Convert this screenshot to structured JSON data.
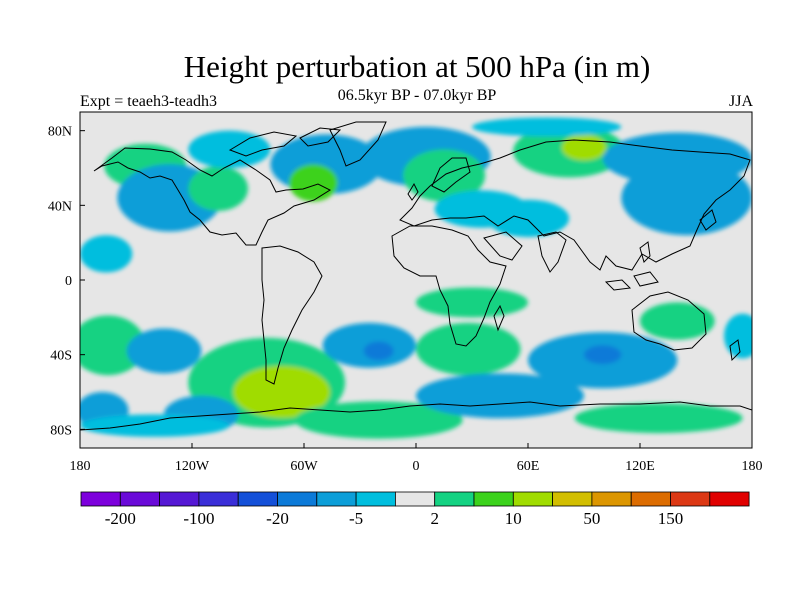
{
  "figure": {
    "title": "Height perturbation at 500 hPa (in m)",
    "subtitle": "06.5kyr BP - 07.0kyr BP",
    "left_label": "Expt = teaeh3-teadh3",
    "right_label": "JJA"
  },
  "chart_data": {
    "type": "heatmap",
    "title": "Height perturbation at 500 hPa (in m)",
    "subtitle": "06.5kyr BP - 07.0kyr BP",
    "xlim": [
      -180,
      180
    ],
    "ylim": [
      -90,
      90
    ],
    "x_ticks": [
      {
        "value": -180,
        "label": "180"
      },
      {
        "value": -120,
        "label": "120W"
      },
      {
        "value": -60,
        "label": "60W"
      },
      {
        "value": 0,
        "label": "0"
      },
      {
        "value": 60,
        "label": "60E"
      },
      {
        "value": 120,
        "label": "120E"
      },
      {
        "value": 180,
        "label": "180"
      }
    ],
    "y_ticks": [
      {
        "value": 80,
        "label": "80N"
      },
      {
        "value": 40,
        "label": "40N"
      },
      {
        "value": 0,
        "label": "0"
      },
      {
        "value": -40,
        "label": "40S"
      },
      {
        "value": -80,
        "label": "80S"
      }
    ],
    "colorbar": {
      "colors": [
        "#7d00dc",
        "#6a0ad8",
        "#5518d4",
        "#3a2ed8",
        "#1450d8",
        "#0c7ad8",
        "#0c9ed8",
        "#00bede",
        "#e6e6e6",
        "#14d282",
        "#3cd21c",
        "#a0dc00",
        "#d2be00",
        "#dc9600",
        "#dc6c00",
        "#dc3814",
        "#e00000"
      ],
      "tick_labels": [
        {
          "after_box": 1,
          "label": "-200"
        },
        {
          "after_box": 3,
          "label": "-100"
        },
        {
          "after_box": 5,
          "label": "-20"
        },
        {
          "after_box": 7,
          "label": "-5"
        },
        {
          "after_box": 9,
          "label": "2"
        },
        {
          "after_box": 11,
          "label": "10"
        },
        {
          "after_box": 13,
          "label": "50"
        },
        {
          "after_box": 15,
          "label": "150"
        }
      ]
    },
    "anomaly_blobs": [
      {
        "lon": -166,
        "lat": 14,
        "rlon": 14,
        "rlat": 10,
        "value": -3
      },
      {
        "lon": -145,
        "lat": 61,
        "rlon": 22,
        "rlat": 12,
        "value": 5
      },
      {
        "lon": -132,
        "lat": 44,
        "rlon": 28,
        "rlat": 18,
        "value": -5
      },
      {
        "lon": -106,
        "lat": 49,
        "rlon": 16,
        "rlat": 12,
        "value": 5
      },
      {
        "lon": -48,
        "lat": 62,
        "rlon": 30,
        "rlat": 16,
        "value": -5
      },
      {
        "lon": -55,
        "lat": 52,
        "rlon": 13,
        "rlat": 10,
        "value": 12
      },
      {
        "lon": -100,
        "lat": 70,
        "rlon": 22,
        "rlat": 10,
        "value": -4
      },
      {
        "lon": 5,
        "lat": 66,
        "rlon": 35,
        "rlat": 16,
        "value": -5
      },
      {
        "lon": 15,
        "lat": 56,
        "rlon": 22,
        "rlat": 14,
        "value": 5
      },
      {
        "lon": 35,
        "lat": 38,
        "rlon": 25,
        "rlat": 10,
        "value": -4
      },
      {
        "lon": 60,
        "lat": 33,
        "rlon": 22,
        "rlat": 10,
        "value": -4
      },
      {
        "lon": 82,
        "lat": 69,
        "rlon": 30,
        "rlat": 14,
        "value": 7
      },
      {
        "lon": 90,
        "lat": 71,
        "rlon": 12,
        "rlat": 7,
        "value": 25
      },
      {
        "lon": 140,
        "lat": 65,
        "rlon": 40,
        "rlat": 14,
        "value": -5
      },
      {
        "lon": 145,
        "lat": 44,
        "rlon": 35,
        "rlat": 20,
        "value": -5
      },
      {
        "lon": 70,
        "lat": 82,
        "rlon": 40,
        "rlat": 5,
        "value": -3
      },
      {
        "lon": -165,
        "lat": -35,
        "rlon": 20,
        "rlat": 16,
        "value": 5
      },
      {
        "lon": -168,
        "lat": -70,
        "rlon": 14,
        "rlat": 10,
        "value": -5
      },
      {
        "lon": -135,
        "lat": -38,
        "rlon": 20,
        "rlat": 12,
        "value": -5
      },
      {
        "lon": -80,
        "lat": -55,
        "rlon": 42,
        "rlat": 24,
        "value": 8
      },
      {
        "lon": -72,
        "lat": -60,
        "rlon": 26,
        "rlat": 14,
        "value": 25
      },
      {
        "lon": -115,
        "lat": -72,
        "rlon": 20,
        "rlat": 10,
        "value": -5
      },
      {
        "lon": -25,
        "lat": -35,
        "rlon": 25,
        "rlat": 12,
        "value": -5
      },
      {
        "lon": -20,
        "lat": -38,
        "rlon": 8,
        "rlat": 5,
        "value": -25
      },
      {
        "lon": -20,
        "lat": -75,
        "rlon": 45,
        "rlat": 10,
        "value": 5
      },
      {
        "lon": 28,
        "lat": -37,
        "rlon": 28,
        "rlat": 14,
        "value": 8
      },
      {
        "lon": 45,
        "lat": -62,
        "rlon": 45,
        "rlat": 12,
        "value": -5
      },
      {
        "lon": 30,
        "lat": -12,
        "rlon": 30,
        "rlat": 8,
        "value": 4
      },
      {
        "lon": 100,
        "lat": -43,
        "rlon": 40,
        "rlat": 15,
        "value": -5
      },
      {
        "lon": 100,
        "lat": -40,
        "rlon": 10,
        "rlat": 5,
        "value": -25
      },
      {
        "lon": 130,
        "lat": -74,
        "rlon": 45,
        "rlat": 8,
        "value": 5
      },
      {
        "lon": 140,
        "lat": -22,
        "rlon": 20,
        "rlat": 10,
        "value": 5
      },
      {
        "lon": 175,
        "lat": -30,
        "rlon": 10,
        "rlat": 12,
        "value": -4
      },
      {
        "lon": -140,
        "lat": -78,
        "rlon": 40,
        "rlat": 6,
        "value": -4
      }
    ]
  }
}
